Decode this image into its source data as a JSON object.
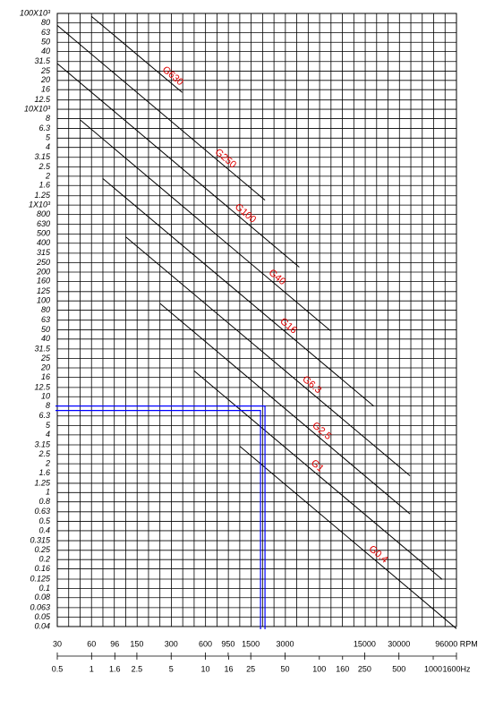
{
  "chart_data": {
    "type": "line",
    "xscale": "log",
    "yscale": "log",
    "grid": true,
    "xlim": [
      30,
      96000
    ],
    "xticks": [
      30,
      60,
      96,
      150,
      300,
      600,
      950,
      1500,
      3000,
      15000,
      30000,
      {
        "value": 96000,
        "label": "96000 RPM"
      }
    ],
    "x2lim": [
      0.5,
      1600
    ],
    "x2ticks": [
      0.5,
      1,
      1.6,
      2.5,
      5,
      10,
      16,
      25,
      50,
      100,
      160,
      250,
      500,
      1000,
      {
        "value": 1600,
        "label": "1600Hz"
      }
    ],
    "ylim": [
      0.04,
      100000
    ],
    "yticks": [
      {
        "value": 100000,
        "label": "100X10³"
      },
      {
        "value": 80000,
        "label": "80"
      },
      {
        "value": 63000,
        "label": "63"
      },
      {
        "value": 50000,
        "label": "50"
      },
      {
        "value": 40000,
        "label": "40"
      },
      {
        "value": 31500,
        "label": "31.5"
      },
      {
        "value": 25000,
        "label": "25"
      },
      {
        "value": 20000,
        "label": "20"
      },
      {
        "value": 16000,
        "label": "16"
      },
      {
        "value": 12500,
        "label": "12.5"
      },
      {
        "value": 10000,
        "label": "10X10³"
      },
      {
        "value": 8000,
        "label": "8"
      },
      {
        "value": 6300,
        "label": "6.3"
      },
      {
        "value": 5000,
        "label": "5"
      },
      {
        "value": 4000,
        "label": "4"
      },
      {
        "value": 3150,
        "label": "3.15"
      },
      {
        "value": 2500,
        "label": "2.5"
      },
      {
        "value": 2000,
        "label": "2"
      },
      {
        "value": 1600,
        "label": "1.6"
      },
      {
        "value": 1250,
        "label": "1.25"
      },
      {
        "value": 1000,
        "label": "1X10³"
      },
      800,
      630,
      500,
      400,
      315,
      250,
      200,
      160,
      125,
      100,
      80,
      63,
      50,
      40,
      31.5,
      25,
      20,
      16,
      12.5,
      10,
      8,
      6.3,
      5,
      4,
      3.15,
      2.5,
      2,
      1.6,
      1.25,
      1,
      0.8,
      0.63,
      0.5,
      0.4,
      0.315,
      0.25,
      0.2,
      0.16,
      0.125,
      0.1,
      0.08,
      0.063,
      0.05,
      0.04
    ],
    "line_color": "#000000",
    "label_color": "#e00000",
    "series": [
      {
        "name": "G630",
        "x": [
          60,
          375
        ],
        "values": [
          93000,
          15000
        ]
      },
      {
        "name": "G250",
        "x": [
          30,
          2000
        ],
        "values": [
          75000,
          1125
        ]
      },
      {
        "name": "G100",
        "x": [
          30,
          4000
        ],
        "values": [
          30000,
          225
        ]
      },
      {
        "name": "G40",
        "x": [
          48,
          7500
        ],
        "values": [
          7700,
          49
        ]
      },
      {
        "name": "G16",
        "x": [
          75,
          18000
        ],
        "values": [
          1900,
          8
        ]
      },
      {
        "name": "G6.3",
        "x": [
          120,
          37500
        ],
        "values": [
          465,
          1.5
        ]
      },
      {
        "name": "G2.5",
        "x": [
          240,
          37500
        ],
        "values": [
          94,
          0.6
        ]
      },
      {
        "name": "G1",
        "x": [
          475,
          72000
        ],
        "values": [
          18.7,
          0.124
        ]
      },
      {
        "name": "G0.4",
        "x": [
          1200,
          96000
        ],
        "values": [
          3.05,
          0.038
        ]
      }
    ],
    "reference": {
      "x": 2000,
      "value": 8,
      "color": "#0000ff"
    }
  }
}
